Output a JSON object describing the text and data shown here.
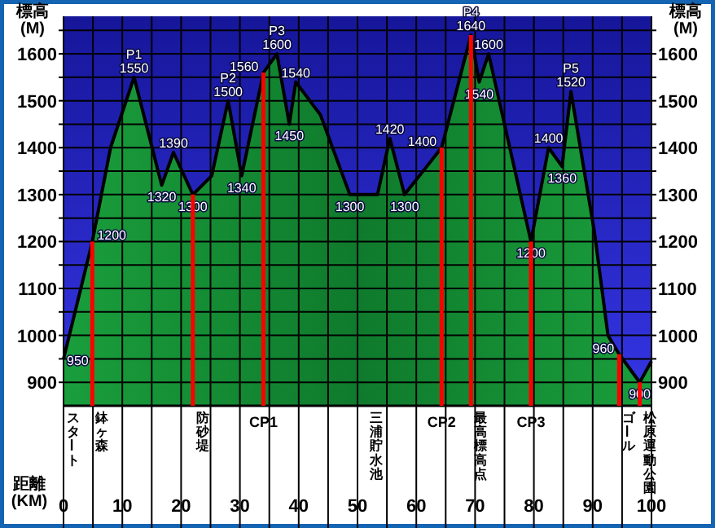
{
  "chart_data": {
    "type": "area",
    "xlabel": "距離\n(KM)",
    "ylabel": "標高\n(M)",
    "y2label": "標高\n(M)",
    "x": [
      0,
      4.9,
      8,
      12,
      16.7,
      18.7,
      22,
      25.2,
      28,
      30.3,
      34,
      36.3,
      38.4,
      39.5,
      43.7,
      48.7,
      53.4,
      55.5,
      58,
      64.3,
      69.3,
      70.7,
      72.3,
      79.5,
      82.5,
      84.8,
      86.3,
      90.3,
      92.6,
      94.5,
      98,
      100
    ],
    "series": [
      {
        "color": "#1a9e3c",
        "values": [
          950,
          1200,
          1400,
          1550,
          1320,
          1390,
          1300,
          1340,
          1500,
          1340,
          1560,
          1600,
          1450,
          1540,
          1470,
          1300,
          1300,
          1420,
          1300,
          1400,
          1640,
          1540,
          1600,
          1200,
          1400,
          1360,
          1520,
          1220,
          1000,
          960,
          900,
          945
        ],
        "value_labels": [
          "950",
          "1200",
          null,
          "P1\n1550",
          "1320",
          "1390",
          "1300",
          null,
          "P2\n1500",
          "1340",
          "1560",
          "P3\n1600",
          "1450",
          "1540",
          null,
          "1300",
          null,
          "1420",
          "1300",
          "1400",
          "P4\n1640",
          "1540",
          "1600",
          "1200",
          "1400",
          "1360",
          "P5\n1520",
          null,
          null,
          "960",
          "900",
          null
        ]
      }
    ],
    "xlim": [
      0,
      100
    ],
    "xticks": [
      0,
      {
        "value": 5,
        "label": null
      },
      10,
      {
        "value": 15,
        "label": null
      },
      20,
      {
        "value": 25,
        "label": null
      },
      30,
      {
        "value": 35,
        "label": null
      },
      40,
      {
        "value": 45,
        "label": null
      },
      50,
      {
        "value": 55,
        "label": null
      },
      60,
      {
        "value": 65,
        "label": null
      },
      70,
      {
        "value": 75,
        "label": null
      },
      80,
      {
        "value": 85,
        "label": null
      },
      90,
      {
        "value": 95,
        "label": null
      },
      100
    ],
    "ylim": [
      850,
      1680
    ],
    "yticks": [
      900,
      {
        "value": 950,
        "label": null
      },
      1000,
      {
        "value": 1050,
        "label": null
      },
      1100,
      {
        "value": 1150,
        "label": null
      },
      1200,
      {
        "value": 1250,
        "label": null
      },
      1300,
      {
        "value": 1350,
        "label": null
      },
      1400,
      {
        "value": 1450,
        "label": null
      },
      1500,
      {
        "value": 1550,
        "label": null
      },
      1600,
      {
        "value": 1650,
        "label": null
      }
    ],
    "y2lim": [
      850,
      1680
    ],
    "y2ticks": [
      900,
      {
        "value": 950,
        "label": null
      },
      1000,
      {
        "value": 1050,
        "label": null
      },
      1100,
      {
        "value": 1150,
        "label": null
      },
      1200,
      {
        "value": 1250,
        "label": null
      },
      1300,
      {
        "value": 1350,
        "label": null
      },
      1400,
      {
        "value": 1450,
        "label": null
      },
      1500,
      {
        "value": 1550,
        "label": null
      },
      1600,
      {
        "value": 1650,
        "label": null
      }
    ],
    "grid": true,
    "ref_lines": [
      {
        "axis": "x",
        "value": 4.9,
        "label": "鉢ヶ森",
        "color": "#ff0000"
      },
      {
        "axis": "x",
        "value": 22,
        "label": "防砂堤",
        "color": "#ff0000"
      },
      {
        "axis": "x",
        "value": 34,
        "label": "CP1",
        "color": "#ff0000"
      },
      {
        "axis": "x",
        "value": 64.3,
        "label": "CP2",
        "color": "#ff0000"
      },
      {
        "axis": "x",
        "value": 69.3,
        "label": "最高標高点",
        "color": "#ff0000"
      },
      {
        "axis": "x",
        "value": 79.5,
        "label": "CP3",
        "color": "#ff0000"
      },
      {
        "axis": "x",
        "value": 94.5,
        "label": "ゴール",
        "color": "#ff0000"
      },
      {
        "axis": "x",
        "value": 98,
        "label": "松原運動公園",
        "color": "#ff0000"
      }
    ],
    "annotations": [
      {
        "text": "スタート",
        "x": 0,
        "y": 850
      },
      {
        "text": "三浦貯水池",
        "x": 51.5,
        "y": 850
      }
    ]
  }
}
